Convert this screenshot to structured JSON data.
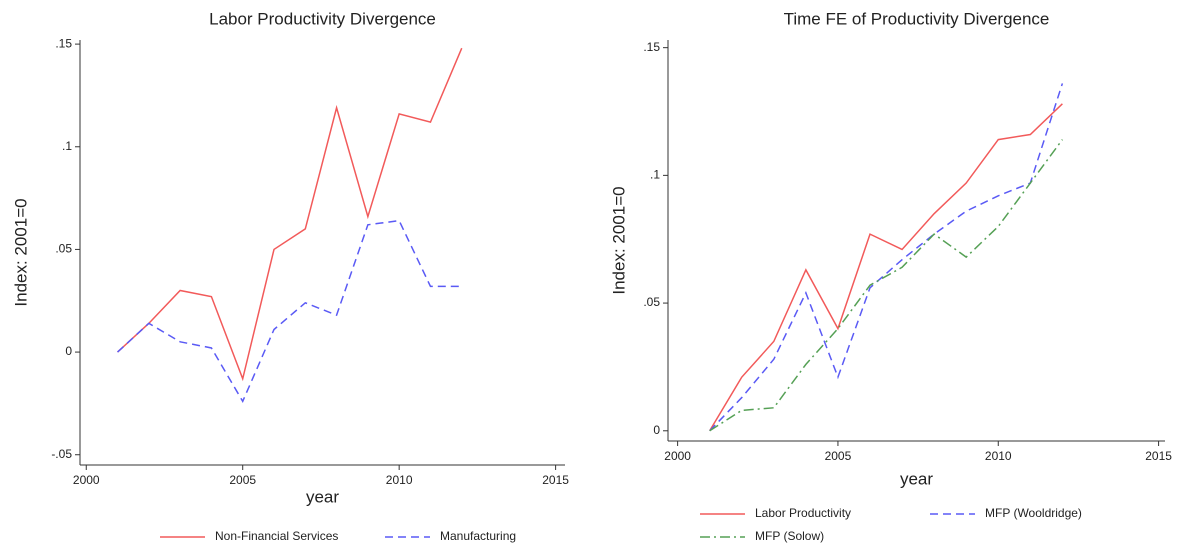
{
  "chart_data": [
    {
      "type": "line",
      "title": "Labor Productivity Divergence",
      "y_label": "Index: 2001=0",
      "x_label": "year",
      "x": [
        2001,
        2002,
        2003,
        2004,
        2005,
        2006,
        2007,
        2008,
        2009,
        2010,
        2011,
        2012
      ],
      "series": [
        {
          "name": "Non-Financial Services",
          "color": "#f25a5a",
          "dash": "solid",
          "values": [
            0,
            0.014,
            0.03,
            0.027,
            -0.013,
            0.05,
            0.06,
            0.119,
            0.066,
            0.116,
            0.112,
            0.148
          ]
        },
        {
          "name": "Manufacturing",
          "color": "#5a5af5",
          "dash": "dash",
          "values": [
            0,
            0.014,
            0.005,
            0.002,
            -0.024,
            0.011,
            0.024,
            0.018,
            0.062,
            0.064,
            0.032,
            0.032
          ]
        }
      ],
      "xlim": [
        1999.8,
        2015.3
      ],
      "xticks": [
        2000,
        2005,
        2010,
        2015
      ],
      "ylim": [
        -0.055,
        0.152
      ],
      "yticks": [
        {
          "value": -0.05,
          "label": "-.05"
        },
        0,
        {
          "value": 0.05,
          "label": ".05"
        },
        {
          "value": 0.1,
          "label": ".1"
        },
        {
          "value": 0.15,
          "label": ".15"
        }
      ]
    },
    {
      "type": "line",
      "title": "Time FE of Productivity Divergence",
      "y_label": "Index: 2001=0",
      "x_label": "year",
      "x": [
        2001,
        2002,
        2003,
        2004,
        2005,
        2006,
        2007,
        2008,
        2009,
        2010,
        2011,
        2012
      ],
      "series": [
        {
          "name": "Labor Productivity",
          "color": "#f25a5a",
          "dash": "solid",
          "values": [
            0,
            0.021,
            0.035,
            0.063,
            0.04,
            0.077,
            0.071,
            0.085,
            0.097,
            0.114,
            0.116,
            0.128
          ]
        },
        {
          "name": "MFP (Wooldridge)",
          "color": "#5a5af5",
          "dash": "dash",
          "values": [
            0,
            0.013,
            0.028,
            0.054,
            0.021,
            0.056,
            0.067,
            0.077,
            0.086,
            0.092,
            0.097,
            0.136
          ]
        },
        {
          "name": "MFP (Solow)",
          "color": "#55a055",
          "dash": "dashdot",
          "values": [
            0,
            0.008,
            0.009,
            0.026,
            0.04,
            0.057,
            0.064,
            0.077,
            0.068,
            0.08,
            0.097,
            0.114
          ]
        }
      ],
      "xlim": [
        1999.7,
        2015.2
      ],
      "xticks": [
        2000,
        2005,
        2010,
        2015
      ],
      "ylim": [
        -0.004,
        0.153
      ],
      "yticks": [
        0,
        {
          "value": 0.05,
          "label": ".05"
        },
        {
          "value": 0.1,
          "label": ".1"
        },
        {
          "value": 0.15,
          "label": ".15"
        }
      ]
    }
  ]
}
